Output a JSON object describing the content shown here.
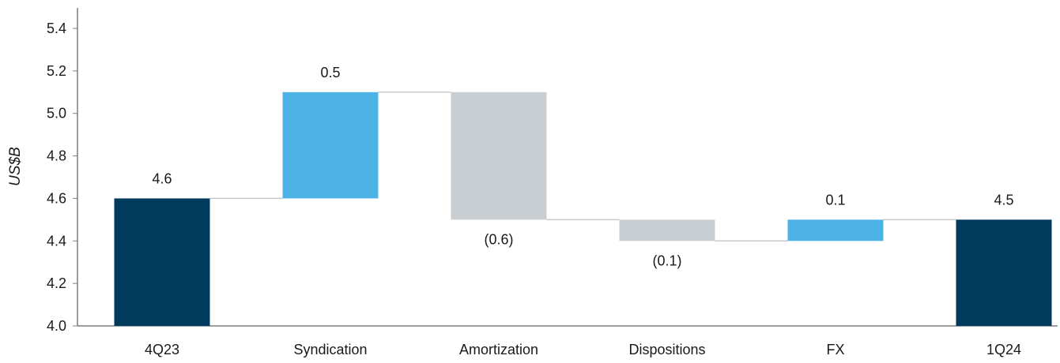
{
  "chart_data": {
    "type": "bar",
    "subtype": "waterfall",
    "ylabel": "US$B",
    "ylim": [
      4.0,
      5.4
    ],
    "yticks": [
      "4.0",
      "4.2",
      "4.4",
      "4.6",
      "4.8",
      "5.0",
      "5.2",
      "5.4"
    ],
    "grid": false,
    "legend": "none",
    "categories": [
      "4Q23",
      "Syndication",
      "Amortization",
      "Dispositions",
      "FX",
      "1Q24"
    ],
    "bars": [
      {
        "category": "4Q23",
        "start": 4.0,
        "end": 4.6,
        "label": "4.6",
        "kind": "total"
      },
      {
        "category": "Syndication",
        "start": 4.6,
        "end": 5.1,
        "label": "0.5",
        "kind": "increase"
      },
      {
        "category": "Amortization",
        "start": 5.1,
        "end": 4.5,
        "label": "(0.6)",
        "kind": "decrease"
      },
      {
        "category": "Dispositions",
        "start": 4.5,
        "end": 4.4,
        "label": "(0.1)",
        "kind": "decrease"
      },
      {
        "category": "FX",
        "start": 4.4,
        "end": 4.5,
        "label": "0.1",
        "kind": "increase"
      },
      {
        "category": "1Q24",
        "start": 4.0,
        "end": 4.5,
        "label": "4.5",
        "kind": "total"
      }
    ],
    "colors": {
      "total": "#003a5c",
      "increase": "#4db3e6",
      "decrease": "#c9ced2",
      "connector": "#c8c8c8",
      "axis": "#7f7f7f"
    }
  }
}
